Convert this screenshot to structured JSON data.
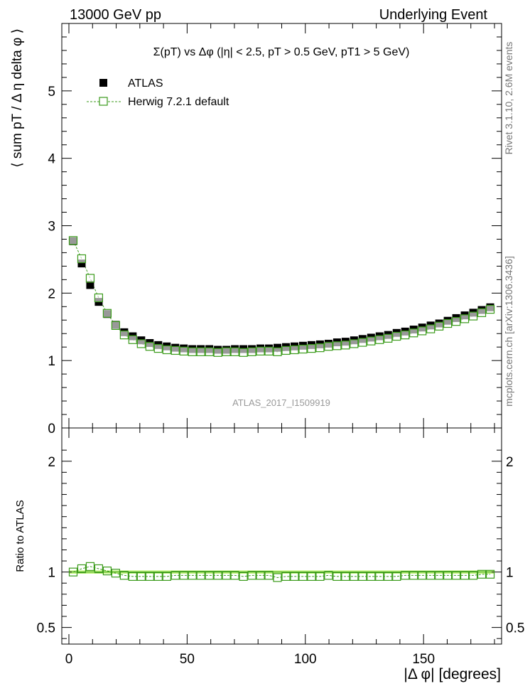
{
  "header": {
    "left": "13000 GeV pp",
    "right": "Underlying Event"
  },
  "side_labels": {
    "rivet": "Rivet 3.1.10, 2.6M events",
    "mcplots": "mcplots.cern.ch [arXiv:1306.3436]"
  },
  "chart_data": {
    "type": "scatter",
    "title": "Σ(pT) vs Δφ (|η| < 2.5, pT > 0.5 GeV, pT1 > 5 GeV)",
    "analysis_id": "ATLAS_2017_I1509919",
    "xlabel": "|Δ φ| [degrees]",
    "ylabel": "⟨ sum pT / Δ η delta φ ⟩",
    "ratio_ylabel": "Ratio to ATLAS",
    "xlim": [
      -3,
      183
    ],
    "ylim": [
      0,
      6
    ],
    "ratio_ylim": [
      0.35,
      2.3
    ],
    "xticks": [
      "0",
      "50",
      "100",
      "150"
    ],
    "yticks": [
      "0",
      "1",
      "2",
      "3",
      "4",
      "5"
    ],
    "ratio_yticks": [
      "0.5",
      "1",
      "2"
    ],
    "legend": [
      {
        "name": "ATLAS",
        "marker": "filled-square",
        "color": "#000000"
      },
      {
        "name": "Herwig 7.2.1 default",
        "marker": "open-square-dashed",
        "color": "#3a9a1a"
      }
    ],
    "x": [
      1.8,
      5.4,
      9.0,
      12.6,
      16.2,
      19.8,
      23.4,
      27.0,
      30.6,
      34.2,
      37.8,
      41.4,
      45.0,
      48.6,
      52.2,
      55.8,
      59.4,
      63.0,
      66.6,
      70.2,
      73.8,
      77.4,
      81.0,
      84.6,
      88.2,
      91.8,
      95.4,
      99.0,
      102.6,
      106.2,
      109.8,
      113.4,
      117.0,
      120.6,
      124.2,
      127.8,
      131.4,
      135.0,
      138.6,
      142.2,
      145.8,
      149.4,
      153.0,
      156.6,
      160.2,
      163.8,
      167.4,
      171.0,
      174.6,
      178.2
    ],
    "series": [
      {
        "name": "ATLAS",
        "values": [
          2.77,
          2.44,
          2.12,
          1.87,
          1.69,
          1.53,
          1.42,
          1.36,
          1.3,
          1.26,
          1.23,
          1.21,
          1.19,
          1.18,
          1.17,
          1.17,
          1.17,
          1.16,
          1.16,
          1.17,
          1.17,
          1.17,
          1.18,
          1.18,
          1.19,
          1.2,
          1.21,
          1.22,
          1.23,
          1.24,
          1.25,
          1.27,
          1.28,
          1.3,
          1.32,
          1.34,
          1.36,
          1.38,
          1.41,
          1.43,
          1.46,
          1.49,
          1.52,
          1.55,
          1.59,
          1.63,
          1.67,
          1.71,
          1.75,
          1.79
        ]
      },
      {
        "name": "Herwig 7.2.1 default",
        "values": [
          2.78,
          2.51,
          2.22,
          1.93,
          1.7,
          1.52,
          1.38,
          1.31,
          1.25,
          1.21,
          1.18,
          1.16,
          1.15,
          1.14,
          1.13,
          1.13,
          1.13,
          1.12,
          1.13,
          1.13,
          1.12,
          1.13,
          1.14,
          1.14,
          1.13,
          1.15,
          1.16,
          1.17,
          1.18,
          1.19,
          1.21,
          1.22,
          1.23,
          1.25,
          1.27,
          1.29,
          1.31,
          1.33,
          1.36,
          1.38,
          1.41,
          1.44,
          1.47,
          1.51,
          1.55,
          1.58,
          1.62,
          1.66,
          1.71,
          1.76
        ]
      }
    ],
    "ratio": {
      "name": "Herwig 7.2.1 default / ATLAS",
      "values": [
        1.0,
        1.03,
        1.05,
        1.03,
        1.01,
        0.99,
        0.97,
        0.96,
        0.96,
        0.96,
        0.96,
        0.96,
        0.97,
        0.97,
        0.97,
        0.97,
        0.97,
        0.97,
        0.97,
        0.97,
        0.96,
        0.97,
        0.97,
        0.97,
        0.95,
        0.96,
        0.96,
        0.96,
        0.96,
        0.96,
        0.97,
        0.96,
        0.96,
        0.96,
        0.96,
        0.96,
        0.96,
        0.96,
        0.96,
        0.97,
        0.97,
        0.97,
        0.97,
        0.97,
        0.97,
        0.97,
        0.97,
        0.97,
        0.98,
        0.98
      ],
      "band": [
        0.985,
        1.015
      ]
    }
  }
}
